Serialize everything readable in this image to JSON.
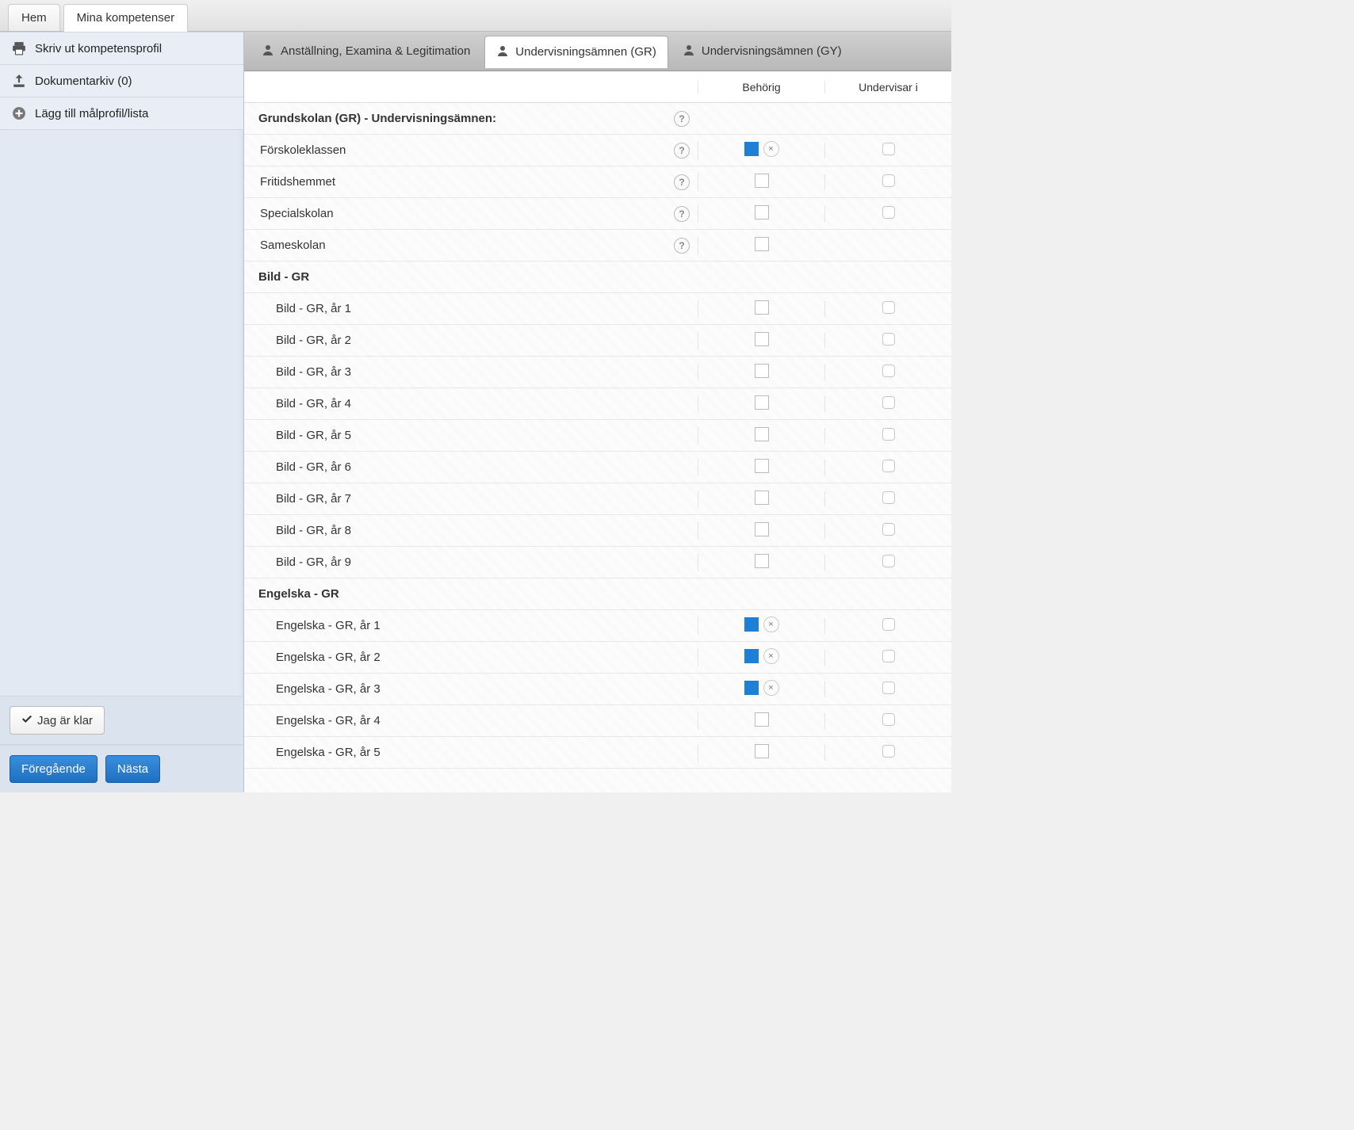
{
  "colors": {
    "accent": "#1e7fd6",
    "primary_btn_top": "#3a8edc",
    "primary_btn_bottom": "#1e6fc0",
    "sidebar_bg": "#e2e9f3",
    "border": "#cfd7e3"
  },
  "top_tabs": [
    {
      "label": "Hem",
      "active": false
    },
    {
      "label": "Mina kompetenser",
      "active": true
    }
  ],
  "sidebar": {
    "items": [
      {
        "icon": "printer",
        "label": "Skriv ut kompetensprofil"
      },
      {
        "icon": "upload",
        "label": "Dokumentarkiv (0)"
      },
      {
        "icon": "plus",
        "label": "Lägg till målprofil/lista"
      }
    ],
    "done_label": "Jag är klar",
    "prev_label": "Föregående",
    "next_label": "Nästa"
  },
  "content_tabs": [
    {
      "label": "Anställning, Examina & Legitimation",
      "active": false
    },
    {
      "label": "Undervisningsämnen (GR)",
      "active": true
    },
    {
      "label": "Undervisningsämnen (GY)",
      "active": false
    }
  ],
  "columns": {
    "behorig": "Behörig",
    "undervisar": "Undervisar i"
  },
  "rows": [
    {
      "type": "group",
      "label": "Grundskolan (GR) - Undervisningsämnen:",
      "help": true,
      "behorig": null,
      "undervisar": null
    },
    {
      "type": "item",
      "label": "Förskoleklassen",
      "help": true,
      "behorig": "filled",
      "removable": true,
      "undervisar": "empty"
    },
    {
      "type": "item",
      "label": "Fritidshemmet",
      "help": true,
      "behorig": "empty",
      "undervisar": "empty"
    },
    {
      "type": "item",
      "label": "Specialskolan",
      "help": true,
      "behorig": "empty",
      "undervisar": "empty"
    },
    {
      "type": "item",
      "label": "Sameskolan",
      "help": true,
      "behorig": "empty",
      "undervisar": null
    },
    {
      "type": "group",
      "label": "Bild - GR",
      "help": false,
      "behorig": null,
      "undervisar": null
    },
    {
      "type": "sub",
      "label": "Bild - GR, år 1",
      "behorig": "empty",
      "undervisar": "empty"
    },
    {
      "type": "sub",
      "label": "Bild - GR, år 2",
      "behorig": "empty",
      "undervisar": "empty"
    },
    {
      "type": "sub",
      "label": "Bild - GR, år 3",
      "behorig": "empty",
      "undervisar": "empty"
    },
    {
      "type": "sub",
      "label": "Bild - GR, år 4",
      "behorig": "empty",
      "undervisar": "empty"
    },
    {
      "type": "sub",
      "label": "Bild - GR, år 5",
      "behorig": "empty",
      "undervisar": "empty"
    },
    {
      "type": "sub",
      "label": "Bild - GR, år 6",
      "behorig": "empty",
      "undervisar": "empty"
    },
    {
      "type": "sub",
      "label": "Bild - GR, år 7",
      "behorig": "empty",
      "undervisar": "empty"
    },
    {
      "type": "sub",
      "label": "Bild - GR, år 8",
      "behorig": "empty",
      "undervisar": "empty"
    },
    {
      "type": "sub",
      "label": "Bild - GR, år 9",
      "behorig": "empty",
      "undervisar": "empty"
    },
    {
      "type": "group",
      "label": "Engelska - GR",
      "help": false,
      "behorig": null,
      "undervisar": null
    },
    {
      "type": "sub",
      "label": "Engelska - GR, år 1",
      "behorig": "filled",
      "removable": true,
      "undervisar": "empty"
    },
    {
      "type": "sub",
      "label": "Engelska - GR, år 2",
      "behorig": "filled",
      "removable": true,
      "undervisar": "empty"
    },
    {
      "type": "sub",
      "label": "Engelska - GR, år 3",
      "behorig": "filled",
      "removable": true,
      "undervisar": "empty"
    },
    {
      "type": "sub",
      "label": "Engelska - GR, år 4",
      "behorig": "empty",
      "undervisar": "empty"
    },
    {
      "type": "sub",
      "label": "Engelska - GR, år 5",
      "behorig": "empty",
      "undervisar": "empty"
    }
  ]
}
